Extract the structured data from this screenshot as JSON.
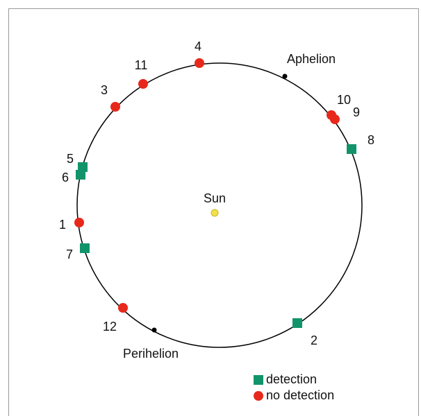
{
  "sun": "Sun",
  "aphelion": "Aphelion",
  "perihelion": "Perihelion",
  "detection": {
    "label": "detection",
    "points": [
      "5",
      "6",
      "7",
      "8",
      "2"
    ]
  },
  "no_detection": {
    "label": "no detection",
    "points": [
      "4",
      "11",
      "3",
      "10",
      "9",
      "1",
      "12"
    ]
  }
}
